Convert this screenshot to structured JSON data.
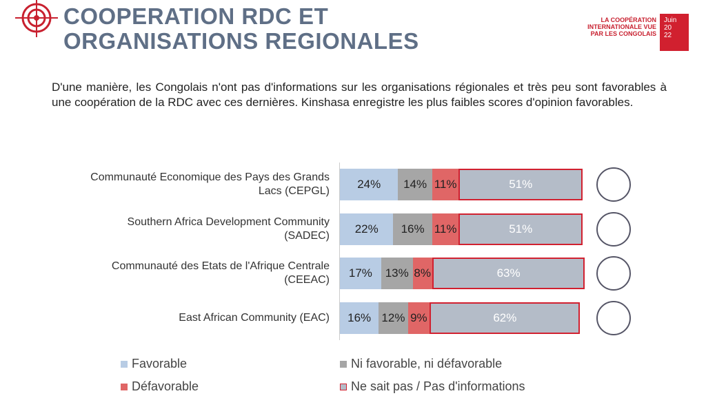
{
  "header": {
    "title_lines": [
      "COOPERATION RDC ET",
      "ORGANISATIONS REGIONALES"
    ],
    "brand_lines": [
      "LA COOPÉRATION",
      "INTERNATIONALE VUE",
      "PAR LES CONGOLAIS"
    ],
    "date_lines": [
      "Juin",
      "20",
      "22"
    ]
  },
  "chart_data": {
    "type": "stacked-bar-horizontal",
    "subtitle": "D'une manière, les Congolais n'ont pas d'informations sur les organisations régionales et très peu sont favorables à une coopération de la RDC avec ces dernières. Kinshasa enregistre les plus faibles scores d'opinion favorables.",
    "categories": [
      "Communauté Economique des Pays des Grands Lacs (CEPGL)",
      "Southern Africa Development Community (SADEC)",
      "Communauté des Etats de l'Afrique Centrale (CEEAC)",
      "East African Community (EAC)"
    ],
    "xlim": [
      0,
      100
    ],
    "legend": "bottom",
    "series": [
      {
        "name": "Favorable",
        "color": "#b8cce4",
        "values": [
          24,
          22,
          17,
          16
        ],
        "value_labels": [
          "24%",
          "22%",
          "17%",
          "16%"
        ]
      },
      {
        "name": "Ni favorable, ni défavorable",
        "color": "#a6a6a6",
        "values": [
          14,
          16,
          13,
          12
        ],
        "value_labels": [
          "14%",
          "16%",
          "13%",
          "12%"
        ]
      },
      {
        "name": "Défavorable",
        "color": "#e06666",
        "values": [
          11,
          11,
          8,
          9
        ],
        "value_labels": [
          "11%",
          "11%",
          "8%",
          "9%"
        ]
      },
      {
        "name": "Ne sait pas / Pas d'informations",
        "color": "#b4bcc8",
        "values": [
          51,
          51,
          63,
          62
        ],
        "value_labels": [
          "51%",
          "51%",
          "63%",
          "62%"
        ]
      }
    ]
  }
}
